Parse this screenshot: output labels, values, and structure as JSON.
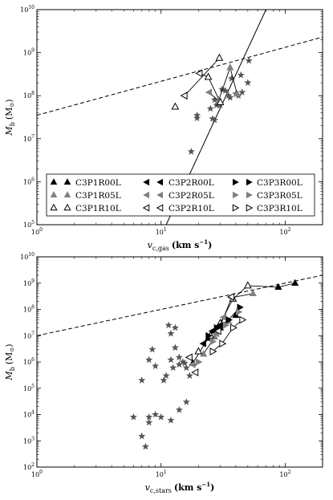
{
  "chart_data": [
    {
      "type": "scatter",
      "xscale": "log",
      "yscale": "log",
      "xlim": [
        1,
        200
      ],
      "ylim": [
        100000,
        10000000000
      ],
      "xlabel_base": "v",
      "xlabel_sub": "c,gas",
      "xlabel_unit": "(km s",
      "xlabel_exp": "−1",
      "xlabel_close": ")",
      "ylabel_base": "M",
      "ylabel_sub": "b",
      "ylabel_unit": "(M",
      "ylabel_close": ")",
      "xticks": [
        {
          "value": 1,
          "base": "10",
          "exp": "0"
        },
        {
          "value": 10,
          "base": "10",
          "exp": "1"
        },
        {
          "value": 100,
          "base": "10",
          "exp": "2"
        }
      ],
      "yticks": [
        {
          "value": 100000,
          "base": "10",
          "exp": "5"
        },
        {
          "value": 1000000,
          "base": "10",
          "exp": "6"
        },
        {
          "value": 10000000,
          "base": "10",
          "exp": "7"
        },
        {
          "value": 100000000,
          "base": "10",
          "exp": "8"
        },
        {
          "value": 1000000000,
          "base": "10",
          "exp": "9"
        },
        {
          "value": 10000000000,
          "base": "10",
          "exp": "10"
        }
      ],
      "reference_lines": [
        {
          "style": "dashed",
          "x": [
            1,
            200
          ],
          "y": [
            35000000,
            2300000000
          ]
        },
        {
          "style": "solid",
          "x": [
            11.0,
            70.0
          ],
          "y": [
            100000,
            10000000000
          ]
        }
      ],
      "stars": [
        [
          17.5,
          5000000
        ],
        [
          19.5,
          35000000
        ],
        [
          19.5,
          30000000
        ],
        [
          25,
          50000000
        ],
        [
          26,
          29000000
        ],
        [
          27,
          27000000
        ],
        [
          28,
          60000000
        ],
        [
          29,
          80000000
        ],
        [
          31,
          140000000
        ],
        [
          33,
          130000000
        ],
        [
          35,
          100000000
        ],
        [
          36,
          90000000
        ],
        [
          37,
          250000000
        ],
        [
          40,
          110000000
        ],
        [
          42,
          100000000
        ],
        [
          44,
          300000000
        ],
        [
          50,
          200000000
        ],
        [
          51,
          650000000
        ],
        [
          30,
          60000000
        ],
        [
          27,
          80000000
        ],
        [
          45,
          120000000
        ]
      ],
      "series": [
        {
          "name": "C3P1R00L",
          "marker": "triangle-up",
          "fill": "#000000",
          "points": []
        },
        {
          "name": "C3P1R05L",
          "marker": "triangle-up",
          "fill": "#808080",
          "points": [
            [
              29,
              75000000
            ],
            [
              36,
              450000000
            ],
            [
              41,
              110000000
            ]
          ]
        },
        {
          "name": "C3P1R10L",
          "marker": "triangle-up",
          "fill": "none",
          "points": [
            [
              13,
              55000000
            ],
            [
              29.5,
              750000000
            ],
            [
              24,
              270000000
            ],
            [
              30,
              70000000
            ]
          ]
        },
        {
          "name": "C3P2R00L",
          "marker": "triangle-left",
          "fill": "#000000",
          "points": []
        },
        {
          "name": "C3P2R05L",
          "marker": "triangle-left",
          "fill": "#808080",
          "points": [
            [
              24.5,
              120000000
            ]
          ]
        },
        {
          "name": "C3P2R10L",
          "marker": "triangle-left",
          "fill": "none",
          "points": [
            [
              15.5,
              100000000
            ],
            [
              20.5,
              330000000
            ]
          ]
        },
        {
          "name": "C3P3R00L",
          "marker": "triangle-right",
          "fill": "#000000",
          "points": []
        },
        {
          "name": "C3P3R05L",
          "marker": "triangle-right",
          "fill": "#808080",
          "points": []
        },
        {
          "name": "C3P3R10L",
          "marker": "triangle-right",
          "fill": "none",
          "points": []
        }
      ],
      "connections": [
        [
          [
            15.5,
            100000000
          ],
          [
            29.5,
            750000000
          ]
        ],
        [
          [
            20.5,
            330000000
          ],
          [
            24,
            270000000
          ],
          [
            30,
            70000000
          ]
        ],
        [
          [
            24.5,
            120000000
          ],
          [
            29,
            75000000
          ],
          [
            36,
            450000000
          ],
          [
            41,
            110000000
          ]
        ]
      ],
      "legend": {
        "placement": "lower-center",
        "columns": 3
      }
    },
    {
      "type": "scatter",
      "xscale": "log",
      "yscale": "log",
      "xlim": [
        1,
        200
      ],
      "ylim": [
        100,
        10000000000
      ],
      "xlabel_base": "v",
      "xlabel_sub": "c,stars",
      "xlabel_unit": "(km s",
      "xlabel_exp": "−1",
      "xlabel_close": ")",
      "ylabel_base": "M",
      "ylabel_sub": "b",
      "ylabel_unit": "(M",
      "ylabel_close": ")",
      "xticks": [
        {
          "value": 1,
          "base": "10",
          "exp": "0"
        },
        {
          "value": 10,
          "base": "10",
          "exp": "1"
        },
        {
          "value": 100,
          "base": "10",
          "exp": "2"
        }
      ],
      "yticks": [
        {
          "value": 100,
          "base": "10",
          "exp": "2"
        },
        {
          "value": 1000,
          "base": "10",
          "exp": "3"
        },
        {
          "value": 10000,
          "base": "10",
          "exp": "4"
        },
        {
          "value": 100000,
          "base": "10",
          "exp": "5"
        },
        {
          "value": 1000000,
          "base": "10",
          "exp": "6"
        },
        {
          "value": 10000000,
          "base": "10",
          "exp": "7"
        },
        {
          "value": 100000000,
          "base": "10",
          "exp": "8"
        },
        {
          "value": 1000000000,
          "base": "10",
          "exp": "9"
        },
        {
          "value": 10000000000,
          "base": "10",
          "exp": "10"
        }
      ],
      "reference_lines": [
        {
          "style": "dashed",
          "x": [
            1,
            200
          ],
          "y": [
            10000000,
            2000000000
          ]
        }
      ],
      "stars": [
        [
          6,
          8000
        ],
        [
          7,
          1500
        ],
        [
          7.5,
          600
        ],
        [
          8,
          8000
        ],
        [
          8,
          5000
        ],
        [
          9,
          10000
        ],
        [
          8.5,
          3000000
        ],
        [
          8,
          1200000
        ],
        [
          7,
          200000
        ],
        [
          11.5,
          25000000
        ],
        [
          12,
          12000000
        ],
        [
          13,
          20000000
        ],
        [
          13,
          3500000
        ],
        [
          14,
          1500000
        ],
        [
          14,
          800000
        ],
        [
          15,
          1000000
        ],
        [
          15.5,
          900000
        ],
        [
          11,
          300000
        ],
        [
          12,
          1200000
        ],
        [
          12.5,
          600000
        ],
        [
          16,
          30000
        ],
        [
          16,
          600000
        ],
        [
          17,
          300000
        ],
        [
          14,
          15000
        ],
        [
          12,
          6000
        ],
        [
          10.5,
          200000
        ],
        [
          9,
          700000
        ],
        [
          10,
          8000
        ]
      ],
      "series": [
        {
          "name": "C3P1R00L",
          "marker": "triangle-up",
          "fill": "#000000",
          "points": [
            [
              120,
              1000000000
            ],
            [
              88,
              700000000
            ],
            [
              40,
              60000000
            ],
            [
              30,
              20000000
            ],
            [
              24,
              8000000
            ],
            [
              18,
              900000
            ]
          ]
        },
        {
          "name": "C3P1R05L",
          "marker": "triangle-up",
          "fill": "#808080",
          "points": [
            [
              55,
              400000000
            ],
            [
              35,
              35000000
            ],
            [
              27,
              9000000
            ],
            [
              22,
              2000000
            ]
          ]
        },
        {
          "name": "C3P1R10L",
          "marker": "triangle-up",
          "fill": "none",
          "points": [
            [
              50,
              800000000
            ],
            [
              38,
              250000000
            ],
            [
              30,
              30000000
            ],
            [
              25,
              10000000
            ],
            [
              20,
              2500000
            ]
          ]
        },
        {
          "name": "C3P2R00L",
          "marker": "triangle-left",
          "fill": "#000000",
          "points": [
            [
              30,
              25000000
            ],
            [
              26,
              15000000
            ],
            [
              22,
              5000000
            ],
            [
              17,
              1500000
            ]
          ]
        },
        {
          "name": "C3P2R05L",
          "marker": "triangle-left",
          "fill": "#808080",
          "points": [
            [
              37,
              280000000
            ],
            [
              32,
              50000000
            ],
            [
              28,
              12000000
            ],
            [
              18,
              800000
            ]
          ]
        },
        {
          "name": "C3P2R10L",
          "marker": "triangle-left",
          "fill": "none",
          "points": [
            [
              37,
              300000000
            ],
            [
              29,
              15000000
            ],
            [
              17,
              1500000
            ],
            [
              19,
              400000
            ]
          ]
        },
        {
          "name": "C3P3R00L",
          "marker": "triangle-right",
          "fill": "#000000",
          "points": [
            [
              43,
              120000000
            ],
            [
              35,
              40000000
            ],
            [
              28,
              20000000
            ],
            [
              24,
              10000000
            ]
          ]
        },
        {
          "name": "C3P3R05L",
          "marker": "triangle-right",
          "fill": "#808080",
          "points": [
            [
              42,
              80000000
            ],
            [
              33,
              25000000
            ],
            [
              26,
              6000000
            ],
            [
              20,
              1000000
            ]
          ]
        },
        {
          "name": "C3P3R10L",
          "marker": "triangle-right",
          "fill": "none",
          "points": [
            [
              45,
              40000000
            ],
            [
              38,
              20000000
            ],
            [
              31,
              5000000
            ],
            [
              26,
              2500000
            ]
          ]
        }
      ],
      "connections": [
        [
          [
            120,
            1000000000
          ],
          [
            88,
            700000000
          ],
          [
            50,
            800000000
          ],
          [
            38,
            250000000
          ],
          [
            30,
            30000000
          ],
          [
            24,
            8000000
          ],
          [
            18,
            900000
          ]
        ],
        [
          [
            55,
            400000000
          ],
          [
            37,
            280000000
          ],
          [
            32,
            50000000
          ],
          [
            27,
            9000000
          ],
          [
            22,
            2000000
          ]
        ],
        [
          [
            43,
            120000000
          ],
          [
            35,
            40000000
          ],
          [
            28,
            20000000
          ],
          [
            24,
            10000000
          ]
        ],
        [
          [
            45,
            40000000
          ],
          [
            38,
            20000000
          ],
          [
            31,
            5000000
          ],
          [
            26,
            2500000
          ]
        ]
      ],
      "legend": null
    }
  ]
}
